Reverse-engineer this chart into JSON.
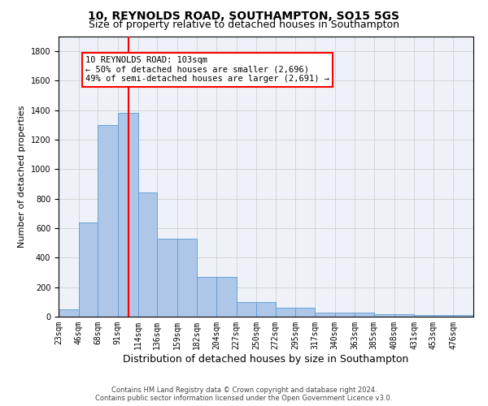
{
  "title": "10, REYNOLDS ROAD, SOUTHAMPTON, SO15 5GS",
  "subtitle": "Size of property relative to detached houses in Southampton",
  "xlabel": "Distribution of detached houses by size in Southampton",
  "ylabel": "Number of detached properties",
  "bar_values": [
    50,
    640,
    1300,
    1380,
    840,
    530,
    530,
    270,
    270,
    100,
    100,
    60,
    60,
    30,
    30,
    30,
    15,
    15,
    10,
    10,
    10
  ],
  "bin_edges": [
    23,
    46,
    68,
    91,
    114,
    136,
    159,
    182,
    204,
    227,
    250,
    272,
    295,
    317,
    340,
    363,
    385,
    408,
    431,
    453,
    476,
    499
  ],
  "bin_labels": [
    "23sqm",
    "46sqm",
    "68sqm",
    "91sqm",
    "114sqm",
    "136sqm",
    "159sqm",
    "182sqm",
    "204sqm",
    "227sqm",
    "250sqm",
    "272sqm",
    "295sqm",
    "317sqm",
    "340sqm",
    "363sqm",
    "385sqm",
    "408sqm",
    "431sqm",
    "453sqm",
    "476sqm"
  ],
  "bar_color": "#aec6e8",
  "bar_edge_color": "#5b9bd5",
  "red_line_x": 103,
  "ylim": [
    0,
    1900
  ],
  "yticks": [
    0,
    200,
    400,
    600,
    800,
    1000,
    1200,
    1400,
    1600,
    1800
  ],
  "annotation_box_text": "10 REYNOLDS ROAD: 103sqm\n← 50% of detached houses are smaller (2,696)\n49% of semi-detached houses are larger (2,691) →",
  "grid_color": "#d0d0d0",
  "bg_color": "#eef2f8",
  "footer_line1": "Contains HM Land Registry data © Crown copyright and database right 2024.",
  "footer_line2": "Contains public sector information licensed under the Open Government Licence v3.0.",
  "title_fontsize": 10,
  "subtitle_fontsize": 9,
  "ylabel_fontsize": 8,
  "xlabel_fontsize": 9,
  "tick_fontsize": 7,
  "footer_fontsize": 6
}
